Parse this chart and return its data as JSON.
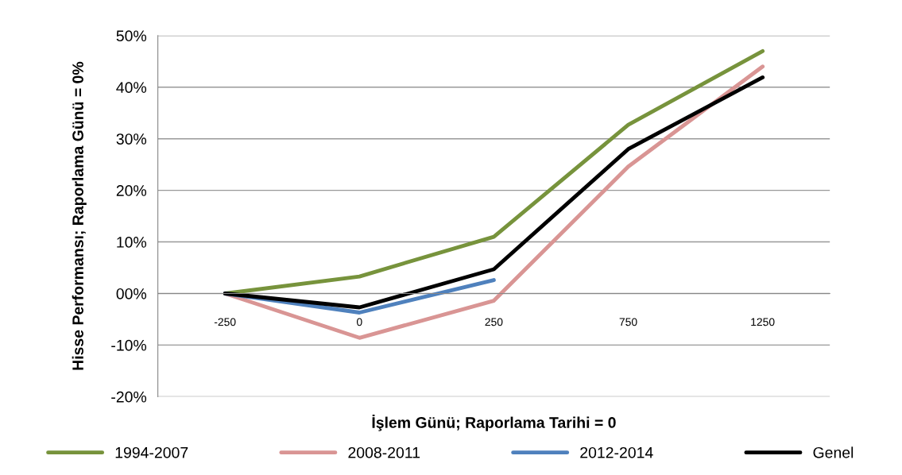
{
  "chart_data": {
    "type": "line",
    "xlabel": "İşlem Günü; Raporlama Tarihi = 0",
    "ylabel": "Hisse Performansı; Raporlama Günü = 0%",
    "categories": [
      "-250",
      "0",
      "250",
      "750",
      "1250"
    ],
    "series": [
      {
        "name": "1994-2007",
        "color": "#77933c",
        "values": [
          0,
          3.3,
          11.0,
          32.7,
          47.0
        ]
      },
      {
        "name": "2008-2011",
        "color": "#d99594",
        "values": [
          0,
          -8.6,
          -1.4,
          24.6,
          44.0
        ]
      },
      {
        "name": "2012-2014",
        "color": "#4f81bd",
        "values": [
          0,
          -3.7,
          2.6,
          null,
          null
        ]
      },
      {
        "name": "Genel",
        "color": "#000000",
        "values": [
          0,
          -2.7,
          4.7,
          28.0,
          41.9
        ]
      }
    ],
    "ylim": [
      -20,
      50
    ],
    "yticks": [
      {
        "value": -20,
        "label": "-20%"
      },
      {
        "value": -10,
        "label": "-10%"
      },
      {
        "value": 0,
        "label": "00%"
      },
      {
        "value": 10,
        "label": "10%"
      },
      {
        "value": 20,
        "label": "20%"
      },
      {
        "value": 30,
        "label": "30%"
      },
      {
        "value": 40,
        "label": "40%"
      },
      {
        "value": 50,
        "label": "50%"
      }
    ],
    "grid": "y",
    "legend": "bottom",
    "marker": "none",
    "line_style": "solid"
  }
}
